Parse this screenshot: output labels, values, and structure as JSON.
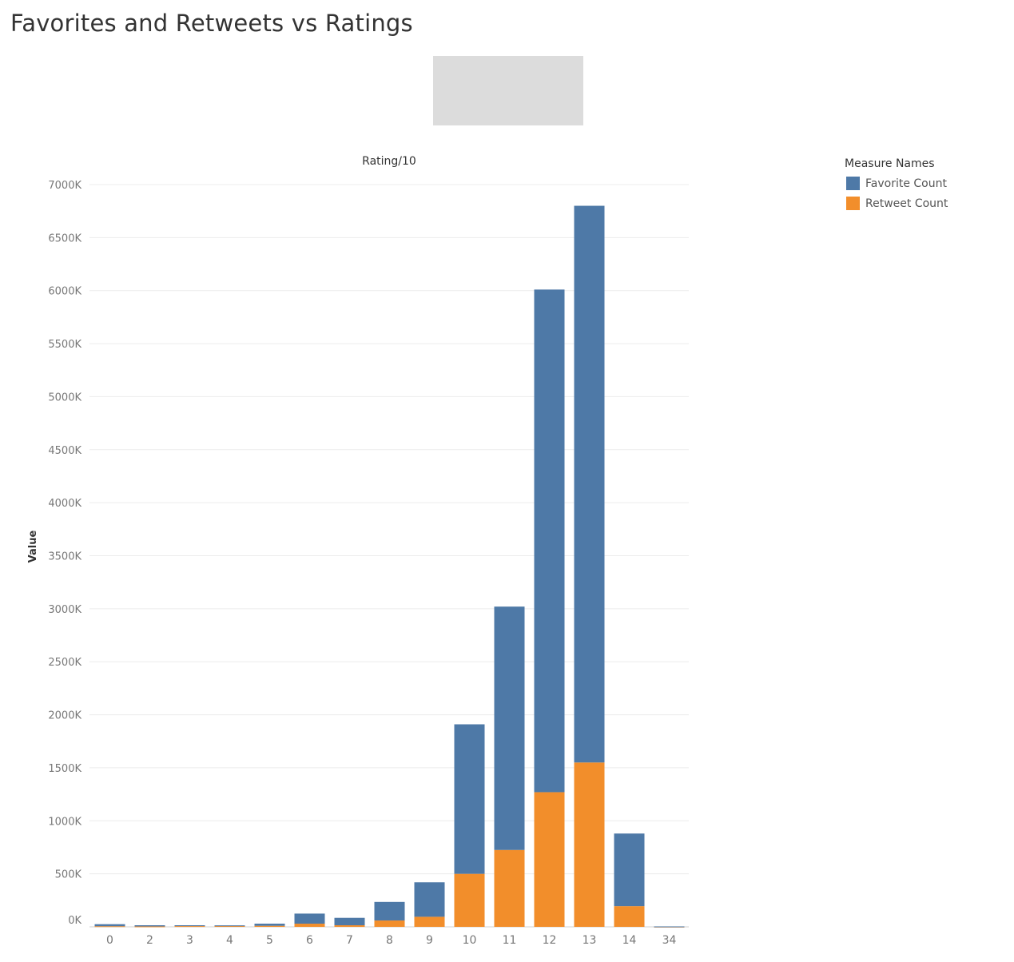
{
  "page": {
    "title": "Favorites and Retweets vs Ratings"
  },
  "legend": {
    "title": "Measure Names",
    "items": [
      {
        "label": "Favorite Count",
        "color": "#4e79a7"
      },
      {
        "label": "Retweet Count",
        "color": "#f28e2b"
      }
    ]
  },
  "chart_data": {
    "type": "bar",
    "stacked": true,
    "title": "Favorites and Retweets vs Ratings",
    "column_header": "Rating/10",
    "xlabel": "",
    "ylabel": "Value",
    "ylim": [
      0,
      7000000
    ],
    "y_ticks": [
      0,
      500000,
      1000000,
      1500000,
      2000000,
      2500000,
      3000000,
      3500000,
      4000000,
      4500000,
      5000000,
      5500000,
      6000000,
      6500000,
      7000000
    ],
    "y_tick_labels": [
      "0K",
      "500K",
      "1000K",
      "1500K",
      "2000K",
      "2500K",
      "3000K",
      "3500K",
      "4000K",
      "4500K",
      "5000K",
      "5500K",
      "6000K",
      "6500K",
      "7000K"
    ],
    "categories": [
      "0",
      "2",
      "3",
      "4",
      "5",
      "6",
      "7",
      "8",
      "9",
      "10",
      "11",
      "12",
      "13",
      "14",
      "34"
    ],
    "series": [
      {
        "name": "Retweet Count",
        "color": "#f28e2b",
        "values": [
          6000,
          4000,
          7000,
          8000,
          10000,
          30000,
          15000,
          60000,
          95000,
          500000,
          725000,
          1270000,
          1550000,
          195000,
          1500
        ]
      },
      {
        "name": "Favorite Count",
        "color": "#4e79a7",
        "values": [
          19000,
          11000,
          8000,
          6000,
          20000,
          95000,
          70000,
          175000,
          325000,
          1410000,
          2295000,
          4740000,
          5250000,
          685000,
          2500
        ]
      }
    ],
    "grid": true,
    "legend_position": "top-right"
  }
}
